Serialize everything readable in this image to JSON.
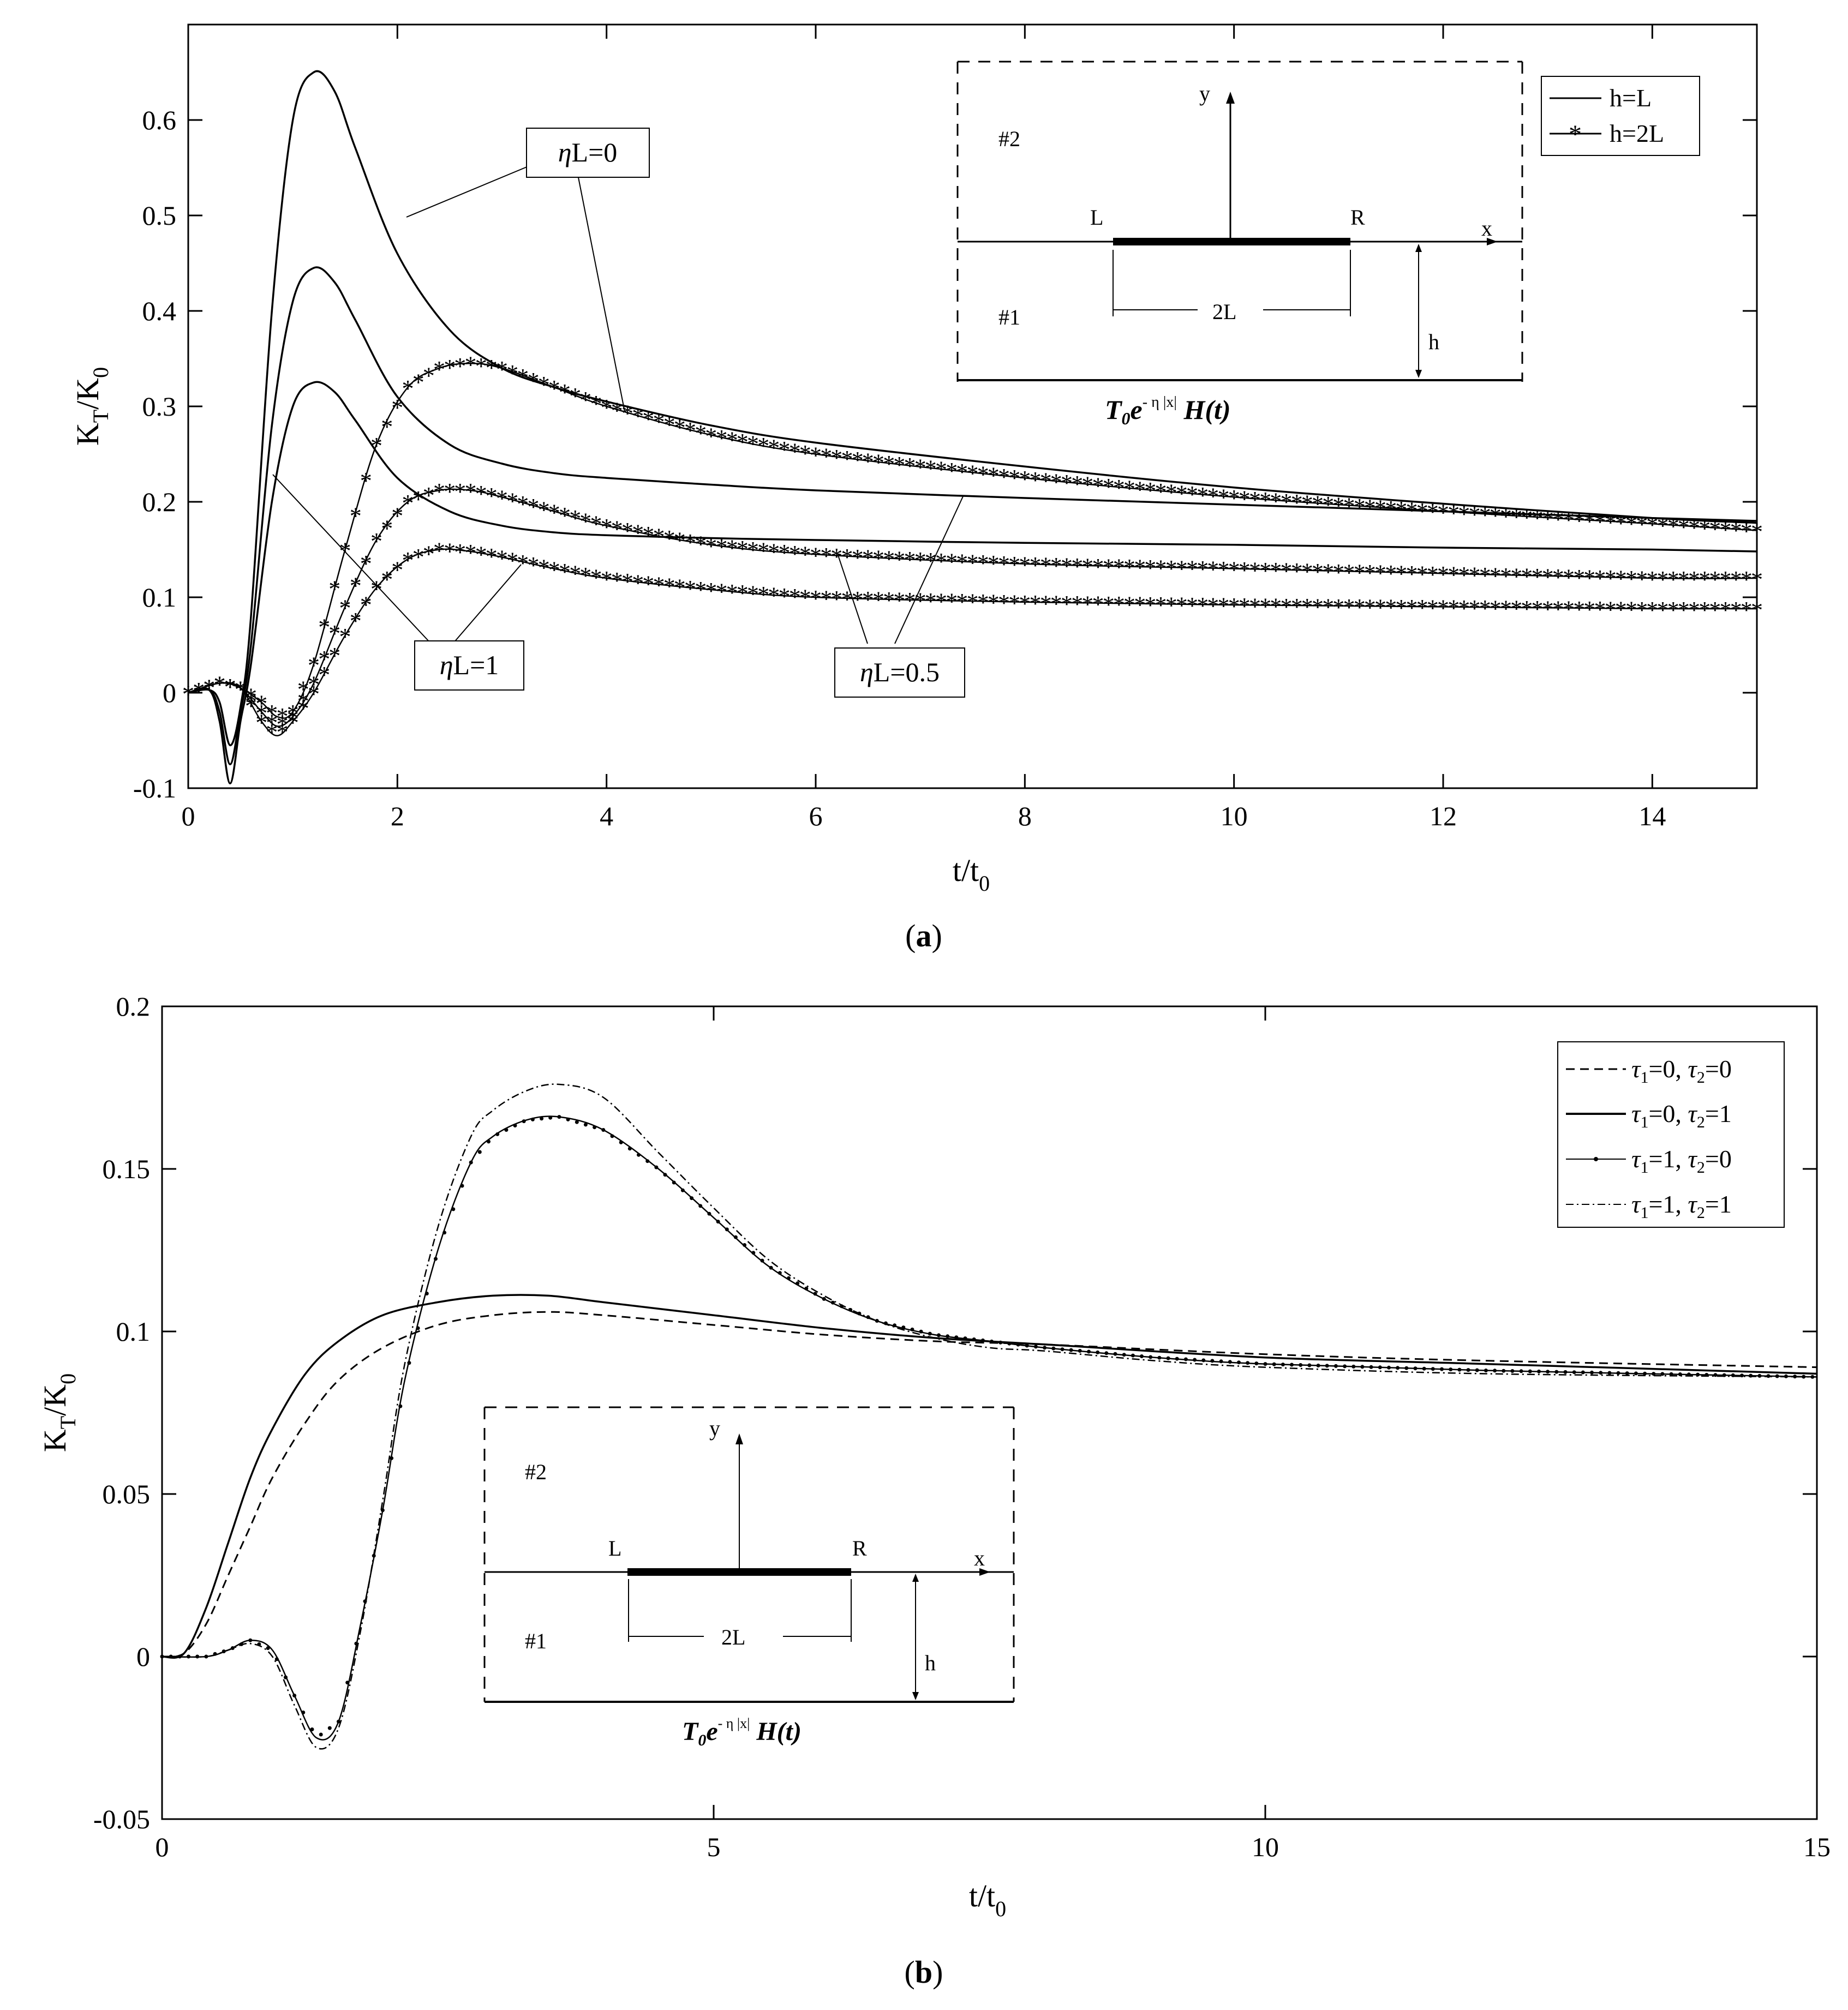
{
  "chart_data": [
    {
      "type": "line",
      "panel": "a",
      "panel_label": "a",
      "xlabel": "t/t",
      "xlabel_sub": "0",
      "ylabel": "K",
      "ylabel_sub1": "T",
      "ylabel_mid": "/K",
      "ylabel_sub2": "0",
      "xlim": [
        0,
        15
      ],
      "ylim": [
        -0.1,
        0.7
      ],
      "xticks": [
        0,
        2,
        4,
        6,
        8,
        10,
        12,
        14
      ],
      "yticks": [
        -0.1,
        0,
        0.1,
        0.2,
        0.3,
        0.4,
        0.5,
        0.6
      ],
      "legend": [
        {
          "label": "h=L",
          "style": "solid"
        },
        {
          "label": "h=2L",
          "style": "star"
        }
      ],
      "annotations": [
        {
          "label": "ηL=0",
          "prefix": "η",
          "rest": "L=0"
        },
        {
          "label": "ηL=1",
          "prefix": "η",
          "rest": "L=1"
        },
        {
          "label": "ηL=0.5",
          "prefix": "η",
          "rest": "L=0.5"
        }
      ],
      "series": [
        {
          "name": "h=L, ηL=0",
          "style": "solid",
          "x": [
            0,
            0.2,
            0.3,
            0.4,
            0.5,
            0.6,
            0.8,
            1.0,
            1.2,
            1.4,
            1.6,
            2.0,
            2.5,
            3.0,
            3.5,
            4.0,
            5,
            6,
            8,
            10,
            12,
            14,
            15
          ],
          "y": [
            0,
            0.003,
            -0.01,
            -0.055,
            -0.015,
            0.08,
            0.4,
            0.6,
            0.65,
            0.63,
            0.57,
            0.46,
            0.38,
            0.34,
            0.32,
            0.305,
            0.28,
            0.262,
            0.237,
            0.215,
            0.198,
            0.183,
            0.178
          ]
        },
        {
          "name": "h=L, ηL=0.5",
          "style": "solid",
          "x": [
            0,
            0.2,
            0.3,
            0.4,
            0.5,
            0.6,
            0.8,
            1.0,
            1.2,
            1.4,
            1.6,
            2.0,
            2.5,
            3.0,
            3.5,
            4,
            5,
            6,
            8,
            10,
            12,
            14,
            15
          ],
          "y": [
            0,
            0.003,
            -0.02,
            -0.075,
            -0.02,
            0.05,
            0.28,
            0.41,
            0.445,
            0.43,
            0.39,
            0.31,
            0.26,
            0.24,
            0.23,
            0.225,
            0.218,
            0.212,
            0.204,
            0.197,
            0.19,
            0.183,
            0.18
          ]
        },
        {
          "name": "h=L, ηL=1",
          "style": "solid",
          "x": [
            0,
            0.2,
            0.3,
            0.4,
            0.5,
            0.6,
            0.8,
            1.0,
            1.2,
            1.4,
            1.6,
            2.0,
            2.5,
            3.0,
            3.5,
            4,
            5,
            6,
            8,
            10,
            12,
            14,
            15
          ],
          "y": [
            0,
            0.003,
            -0.03,
            -0.095,
            -0.03,
            0.03,
            0.2,
            0.3,
            0.325,
            0.315,
            0.285,
            0.225,
            0.19,
            0.175,
            0.168,
            0.165,
            0.162,
            0.16,
            0.157,
            0.155,
            0.152,
            0.15,
            0.148
          ]
        },
        {
          "name": "h=2L, ηL=0",
          "style": "star",
          "x": [
            0,
            0.3,
            0.5,
            0.7,
            0.85,
            1.0,
            1.2,
            1.5,
            1.8,
            2.1,
            2.4,
            2.7,
            3.0,
            3.5,
            4,
            5,
            6,
            8,
            10,
            12,
            14,
            15
          ],
          "y": [
            0,
            0.01,
            0.005,
            -0.01,
            -0.025,
            -0.02,
            0.03,
            0.15,
            0.26,
            0.32,
            0.34,
            0.345,
            0.34,
            0.32,
            0.3,
            0.27,
            0.25,
            0.225,
            0.205,
            0.19,
            0.177,
            0.17
          ]
        },
        {
          "name": "h=2L, ηL=0.5",
          "style": "star",
          "x": [
            0,
            0.3,
            0.5,
            0.7,
            0.85,
            1.0,
            1.2,
            1.5,
            1.8,
            2.1,
            2.4,
            2.7,
            3.0,
            3.5,
            4,
            5,
            6,
            8,
            10,
            12,
            14,
            15
          ],
          "y": [
            0,
            0.01,
            0.005,
            -0.02,
            -0.035,
            -0.025,
            0.01,
            0.09,
            0.16,
            0.2,
            0.212,
            0.212,
            0.205,
            0.19,
            0.175,
            0.155,
            0.145,
            0.135,
            0.13,
            0.125,
            0.12,
            0.12
          ]
        },
        {
          "name": "h=2L, ηL=1",
          "style": "star",
          "x": [
            0,
            0.3,
            0.5,
            0.7,
            0.85,
            1.0,
            1.2,
            1.5,
            1.8,
            2.1,
            2.4,
            2.7,
            3.0,
            3.5,
            4,
            5,
            6,
            8,
            10,
            12,
            14,
            15
          ],
          "y": [
            0,
            0.01,
            0.005,
            -0.03,
            -0.045,
            -0.03,
            0.0,
            0.06,
            0.11,
            0.14,
            0.15,
            0.148,
            0.142,
            0.13,
            0.12,
            0.108,
            0.1,
            0.095,
            0.092,
            0.09,
            0.088,
            0.088
          ]
        }
      ]
    },
    {
      "type": "line",
      "panel": "b",
      "panel_label": "b",
      "xlabel": "t/t",
      "xlabel_sub": "0",
      "ylabel": "K",
      "ylabel_sub1": "T",
      "ylabel_mid": "/K",
      "ylabel_sub2": "0",
      "xlim": [
        0,
        15
      ],
      "ylim": [
        -0.05,
        0.2
      ],
      "xticks": [
        0,
        5,
        10,
        15
      ],
      "yticks": [
        -0.05,
        0,
        0.05,
        0.1,
        0.15,
        0.2
      ],
      "legend": [
        {
          "tau": "τ",
          "s1": "1",
          "v1": "=0, ",
          "s2": "2",
          "v2": "=0",
          "style": "dashed"
        },
        {
          "tau": "τ",
          "s1": "1",
          "v1": "=0, ",
          "s2": "2",
          "v2": "=1",
          "style": "solid"
        },
        {
          "tau": "τ",
          "s1": "1",
          "v1": "=1, ",
          "s2": "2",
          "v2": "=0",
          "style": "dot"
        },
        {
          "tau": "τ",
          "s1": "1",
          "v1": "=1, ",
          "s2": "2",
          "v2": "=1",
          "style": "dashdot"
        }
      ],
      "series": [
        {
          "name": "τ1=0, τ2=0",
          "style": "dashed",
          "x": [
            0,
            0.2,
            0.4,
            0.6,
            0.8,
            1.0,
            1.3,
            1.6,
            2.0,
            2.5,
            3.0,
            3.5,
            4,
            5,
            6,
            7,
            8,
            10,
            12,
            15
          ],
          "y": [
            0,
            0.001,
            0.01,
            0.025,
            0.04,
            0.055,
            0.072,
            0.085,
            0.095,
            0.102,
            0.105,
            0.106,
            0.105,
            0.102,
            0.099,
            0.097,
            0.096,
            0.093,
            0.091,
            0.089
          ]
        },
        {
          "name": "τ1=0, τ2=1",
          "style": "solid",
          "x": [
            0,
            0.2,
            0.4,
            0.6,
            0.8,
            1.0,
            1.3,
            1.6,
            2.0,
            2.5,
            3.0,
            3.5,
            4,
            5,
            6,
            7,
            8,
            10,
            12,
            15
          ],
          "y": [
            0,
            0.001,
            0.015,
            0.035,
            0.055,
            0.07,
            0.087,
            0.097,
            0.105,
            0.109,
            0.111,
            0.111,
            0.109,
            0.105,
            0.101,
            0.098,
            0.096,
            0.092,
            0.09,
            0.087
          ]
        },
        {
          "name": "τ1=1, τ2=0",
          "style": "dot",
          "x": [
            0,
            0.4,
            0.6,
            0.8,
            1.0,
            1.2,
            1.4,
            1.6,
            1.8,
            2.0,
            2.2,
            2.5,
            2.8,
            3.0,
            3.3,
            3.6,
            4.0,
            4.5,
            5,
            5.5,
            6,
            6.5,
            7,
            7.5,
            8,
            9,
            10,
            12,
            15
          ],
          "y": [
            0,
            0,
            0.002,
            0.005,
            0.002,
            -0.012,
            -0.025,
            -0.02,
            0.01,
            0.045,
            0.085,
            0.125,
            0.152,
            0.16,
            0.165,
            0.166,
            0.162,
            0.15,
            0.135,
            0.12,
            0.11,
            0.103,
            0.099,
            0.097,
            0.095,
            0.092,
            0.09,
            0.088,
            0.086
          ]
        },
        {
          "name": "τ1=1, τ2=1",
          "style": "dashdot",
          "x": [
            0,
            0.4,
            0.6,
            0.8,
            1.0,
            1.2,
            1.4,
            1.6,
            1.8,
            2.0,
            2.2,
            2.5,
            2.8,
            3.0,
            3.3,
            3.6,
            4.0,
            4.5,
            5,
            5.5,
            6,
            6.5,
            7,
            7.5,
            8,
            9,
            10,
            12,
            15
          ],
          "y": [
            0,
            0,
            0.002,
            0.004,
            0.0,
            -0.015,
            -0.028,
            -0.022,
            0.008,
            0.048,
            0.09,
            0.132,
            0.16,
            0.168,
            0.174,
            0.176,
            0.172,
            0.155,
            0.138,
            0.122,
            0.111,
            0.103,
            0.098,
            0.095,
            0.094,
            0.091,
            0.089,
            0.087,
            0.086
          ]
        }
      ]
    }
  ],
  "inset": {
    "region_top": "#2",
    "region_bottom": "#1",
    "y_axis": "y",
    "x_axis": "x",
    "left_tip": "L",
    "right_tip": "R",
    "crack_length": "2L",
    "height": "h",
    "load_T": "T",
    "load_sub": "0",
    "load_e": "e",
    "load_exp": "- η |x|",
    "load_H": " H(t)"
  }
}
